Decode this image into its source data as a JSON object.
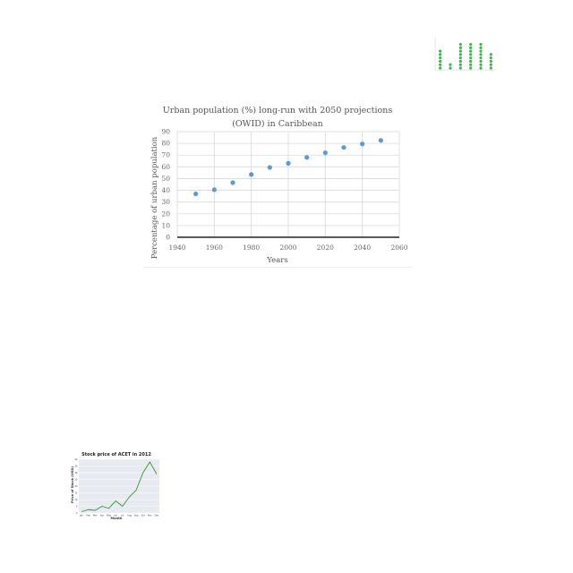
{
  "chart_data": [
    {
      "type": "scatter",
      "title_lines": [
        "Urban population (%) long-run with 2050 projections",
        "(OWID) in Caribbean"
      ],
      "xlabel": "Years",
      "ylabel": "Percentage of urban population",
      "xlim": [
        1940,
        2060
      ],
      "ylim": [
        0,
        90
      ],
      "xticks": [
        1940,
        1960,
        1980,
        2000,
        2020,
        2040,
        2060
      ],
      "yticks": [
        0,
        10,
        20,
        30,
        40,
        50,
        60,
        70,
        80,
        90
      ],
      "grid": true,
      "marker_color": "#5b9bd5",
      "points": [
        {
          "x": 1950,
          "y": 37
        },
        {
          "x": 1960,
          "y": 40.5
        },
        {
          "x": 1970,
          "y": 46.5
        },
        {
          "x": 1980,
          "y": 53.5
        },
        {
          "x": 1990,
          "y": 59.5
        },
        {
          "x": 2000,
          "y": 63
        },
        {
          "x": 2010,
          "y": 68
        },
        {
          "x": 2020,
          "y": 72
        },
        {
          "x": 2030,
          "y": 76.5
        },
        {
          "x": 2040,
          "y": 79.5
        },
        {
          "x": 2050,
          "y": 82.5
        }
      ]
    },
    {
      "type": "scatter",
      "title": "",
      "xlabel": "",
      "ylabel": "",
      "marker_color": "#3cb54a",
      "categories": [
        "",
        "",
        "",
        "",
        "",
        ""
      ],
      "values": [
        6,
        2,
        8,
        8,
        8,
        5
      ],
      "ylim": [
        0,
        9
      ]
    },
    {
      "type": "line",
      "title": "Stock price of ACET in 2012",
      "xlabel": "Month",
      "ylabel": "Price of Stock (USD)",
      "line_color": "#2e9a2e",
      "categories": [
        "Jan",
        "Feb",
        "Mar",
        "Apr",
        "May",
        "Jun",
        "Jul",
        "Aug",
        "Sep",
        "Oct",
        "Nov",
        "Dec"
      ],
      "values": [
        1,
        2.5,
        2,
        5,
        3.5,
        9,
        5,
        12,
        17,
        30,
        38,
        29
      ],
      "ylim": [
        0,
        40
      ],
      "yticks": [
        0,
        5,
        10,
        15,
        20,
        25,
        30,
        35,
        40
      ]
    }
  ]
}
